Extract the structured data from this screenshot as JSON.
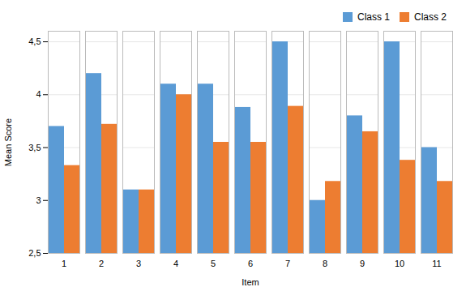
{
  "chart_data": {
    "type": "bar",
    "xlabel": "Item",
    "ylabel": "Mean Score",
    "categories": [
      "1",
      "2",
      "3",
      "4",
      "5",
      "6",
      "7",
      "8",
      "9",
      "10",
      "11"
    ],
    "series": [
      {
        "name": "Class 1",
        "color": "#5b9bd5",
        "values": [
          3.7,
          4.2,
          3.1,
          4.1,
          4.1,
          3.88,
          4.5,
          3.0,
          3.8,
          4.5,
          3.5
        ]
      },
      {
        "name": "Class 2",
        "color": "#ed7d31",
        "values": [
          3.33,
          3.72,
          3.1,
          4.0,
          3.55,
          3.55,
          3.89,
          3.18,
          3.65,
          3.38,
          3.18
        ]
      }
    ],
    "ylim": [
      2.5,
      4.6
    ],
    "yticks": [
      {
        "value": 2.5,
        "label": "2,5"
      },
      3,
      {
        "value": 3.5,
        "label": "3,5"
      },
      4,
      {
        "value": 4.5,
        "label": "4,5"
      }
    ],
    "grid": true,
    "legend": "top"
  }
}
